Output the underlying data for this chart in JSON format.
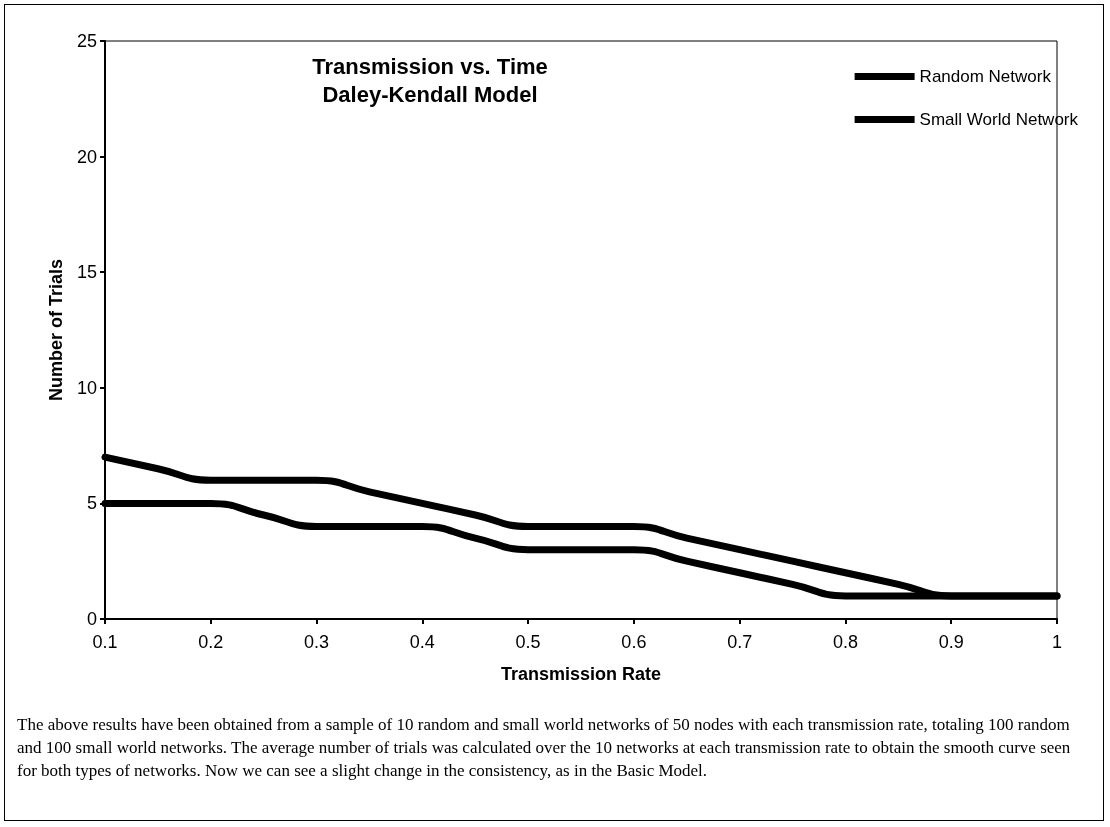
{
  "chart_data": {
    "type": "line",
    "title": "Transmission vs. Time",
    "subtitle": "Daley-Kendall Model",
    "xlabel": "Transmission Rate",
    "ylabel": "Number of Trials",
    "x": [
      0.1,
      0.15,
      0.2,
      0.25,
      0.3,
      0.35,
      0.4,
      0.45,
      0.5,
      0.55,
      0.6,
      0.65,
      0.7,
      0.75,
      0.8,
      0.85,
      0.9,
      0.95,
      1
    ],
    "series": [
      {
        "name": "Random Network",
        "color": "#000000",
        "values": [
          7,
          6.5,
          6,
          6,
          6,
          5.5,
          5,
          4.5,
          4,
          4,
          4,
          3.5,
          3,
          2.5,
          2,
          1.5,
          1,
          1,
          1
        ]
      },
      {
        "name": "Small World Network",
        "color": "#000000",
        "values": [
          5,
          5,
          5,
          4.5,
          4,
          4,
          4,
          3.5,
          3,
          3,
          3,
          2.5,
          2,
          1.5,
          1,
          1,
          1,
          1,
          1
        ]
      }
    ],
    "xlim": [
      0.1,
      1
    ],
    "xticks": [
      0.1,
      0.2,
      0.3,
      0.4,
      0.5,
      0.6,
      0.7,
      0.8,
      0.9,
      1
    ],
    "ylim": [
      0,
      25
    ],
    "yticks": [
      0,
      5,
      10,
      15,
      20,
      25
    ],
    "grid": false,
    "legend": "top right",
    "marker": "none",
    "line_style": "solid",
    "annotations": [
      "The above results have been obtained from a sample of 10 random and small world networks of 50 nodes with each transmission rate, totaling 100 random and 100 small world networks. The average number of trials was calculated over the 10 networks at each transmission rate to obtain the smooth curve seen for both types of networks. Now we can see a slight change in the consistency, as in the Basic Model."
    ]
  }
}
